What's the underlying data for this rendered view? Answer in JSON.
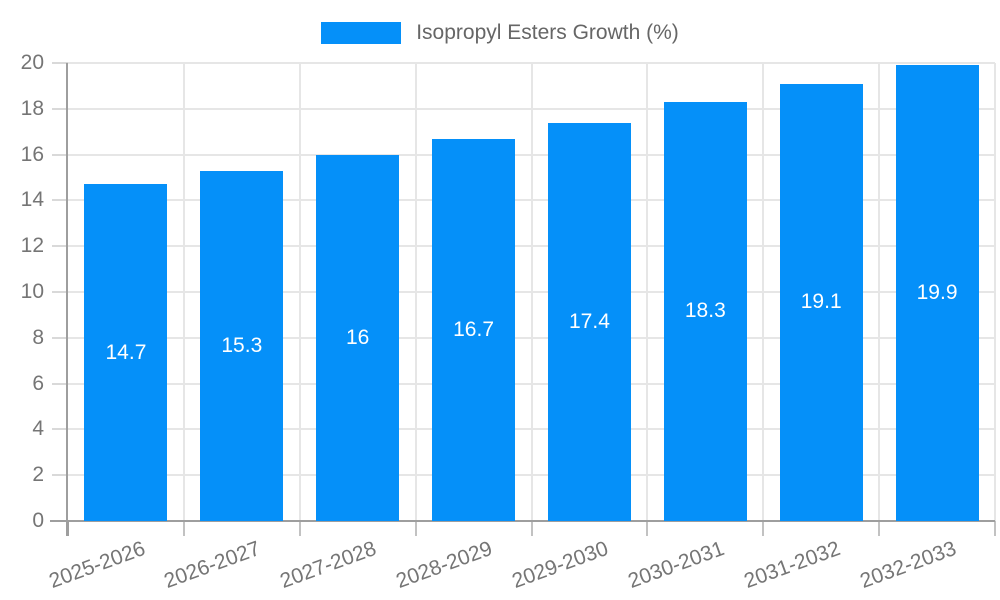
{
  "legend": {
    "label": "Isopropyl Esters Growth (%)"
  },
  "chart_data": {
    "type": "bar",
    "title": "Isopropyl Esters Growth (%)",
    "categories": [
      "2025-2026",
      "2026-2027",
      "2027-2028",
      "2028-2029",
      "2029-2030",
      "2030-2031",
      "2031-2032",
      "2032-2033"
    ],
    "series": [
      {
        "name": "Isopropyl Esters Growth (%)",
        "values": [
          14.7,
          15.3,
          16,
          16.7,
          17.4,
          18.3,
          19.1,
          19.9
        ],
        "labels": [
          "14.7",
          "15.3",
          "16",
          "16.7",
          "17.4",
          "18.3",
          "19.1",
          "19.9"
        ]
      }
    ],
    "xlabel": "",
    "ylabel": "",
    "ylim": [
      0,
      20
    ],
    "yticks": [
      0,
      2,
      4,
      6,
      8,
      10,
      12,
      14,
      16,
      18,
      20
    ],
    "grid": true,
    "legend_position": "top-center",
    "value_labels": "inside-center",
    "x_label_rotation_deg": -20,
    "colors": {
      "bar": "#0590f9",
      "grid": "#e6e6e6",
      "axis": "#9e9e9e",
      "tick_x": "#c2c2c2",
      "tick_y": "#d9d9d9",
      "label_text": "#757575",
      "value_label": "#ffffff",
      "legend_text": "#666666"
    }
  }
}
